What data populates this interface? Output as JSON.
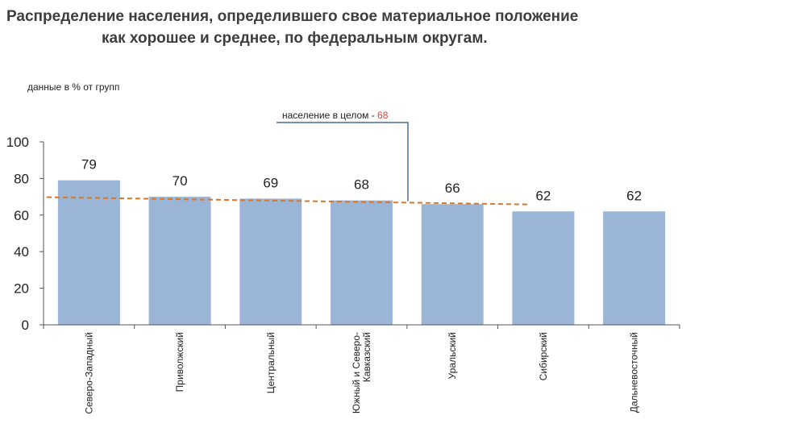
{
  "title_line1": "Распределение населения, определившего свое материальное положение",
  "title_line2": "как хорошее и среднее, по федеральным округам.",
  "units_label": "данные в % от групп",
  "chart_data": {
    "type": "bar",
    "title": "Распределение населения, определившего свое материальное положение как хорошее и среднее, по федеральным округам.",
    "ylabel": "данные в % от групп",
    "xlabel": "",
    "ylim": [
      0,
      100
    ],
    "yticks": [
      0,
      20,
      40,
      60,
      80,
      100
    ],
    "grid": false,
    "categories": [
      "Северо-Западный",
      "Приволжский",
      "Центральный",
      "Южный и Северо-Кавказский",
      "Уральский",
      "Сибирский",
      "Дальневосточный"
    ],
    "category_lines": [
      [
        "Северо-Западный"
      ],
      [
        "Приволжский"
      ],
      [
        "Центральный"
      ],
      [
        "Южный и Северо-",
        "Кавказский"
      ],
      [
        "Уральский"
      ],
      [
        "Сибирский"
      ],
      [
        "Дальневосточный"
      ]
    ],
    "values": [
      79,
      70,
      69,
      68,
      66,
      62,
      62
    ],
    "reference_line": {
      "value": 68,
      "label": "население в целом - ",
      "value_text": "68"
    },
    "colors": {
      "bar": "#9bb5d6",
      "reference_line": "#d9782a",
      "callout": "#4a6f96",
      "reference_value": "#e04040",
      "axis": "#555555"
    }
  }
}
